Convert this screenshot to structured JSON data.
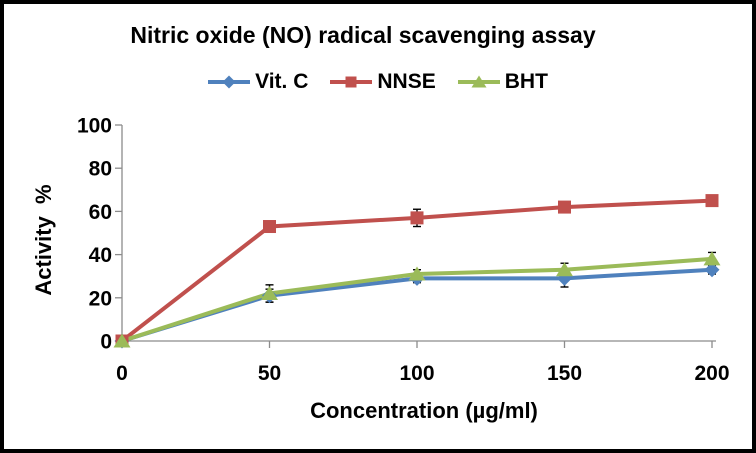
{
  "chart_data": {
    "type": "line",
    "title": "Nitric oxide (NO) radical scavenging assay",
    "xlabel": "Concentration (µg/ml)",
    "ylabel": "Activity  %",
    "x": [
      0,
      50,
      100,
      150,
      200
    ],
    "x_tick_labels": [
      "0",
      "50",
      "100",
      "150",
      "200"
    ],
    "y_ticks": [
      0,
      20,
      40,
      60,
      80,
      100
    ],
    "y_tick_labels": [
      "0",
      "20",
      "40",
      "60",
      "80",
      "100"
    ],
    "xlim": [
      0,
      200
    ],
    "ylim": [
      0,
      100
    ],
    "grid": false,
    "legend_position": "top",
    "axis_color": "#8C8C8C",
    "error_bar_color": "#000000",
    "series": [
      {
        "name": "Vit. C",
        "marker": "diamond",
        "color": "#4F81BD",
        "values": [
          0,
          21,
          29,
          29,
          33
        ],
        "errors": [
          0,
          3,
          2,
          4,
          2
        ]
      },
      {
        "name": "NNSE",
        "marker": "square",
        "color": "#C0504D",
        "values": [
          0,
          53,
          57,
          62,
          65
        ],
        "errors": [
          0,
          0,
          4,
          2,
          2
        ]
      },
      {
        "name": "BHT",
        "marker": "triangle",
        "color": "#9BBB59",
        "values": [
          0,
          22,
          31,
          33,
          38
        ],
        "errors": [
          0,
          4,
          2,
          3,
          3
        ]
      }
    ]
  }
}
